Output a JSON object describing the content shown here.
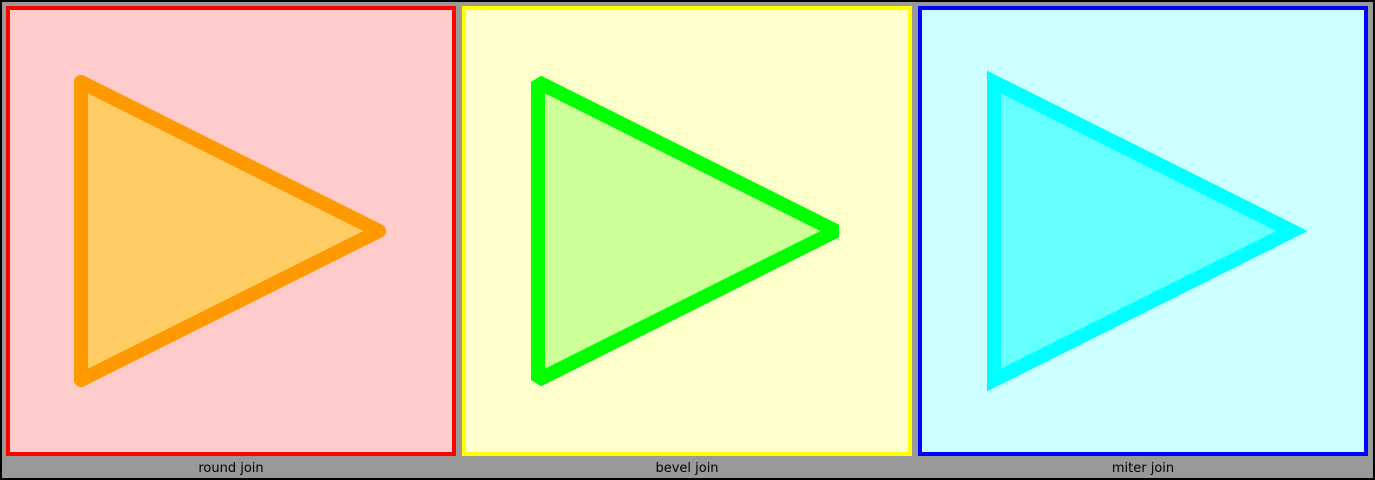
{
  "panels": [
    {
      "id": "round",
      "caption": "round join",
      "linejoin": "round",
      "border_color": "#ff0000",
      "background_color": "#ffcccc",
      "stroke_color": "#ff9900",
      "fill_color": "#ffcc66",
      "shape": "triangle-arrow-right"
    },
    {
      "id": "bevel",
      "caption": "bevel join",
      "linejoin": "bevel",
      "border_color": "#ffff00",
      "background_color": "#ffffcc",
      "stroke_color": "#00ff00",
      "fill_color": "#ccff99",
      "shape": "triangle-arrow-right"
    },
    {
      "id": "miter",
      "caption": "miter join",
      "linejoin": "miter",
      "border_color": "#0000ff",
      "background_color": "#ccffff",
      "stroke_color": "#00ffff",
      "fill_color": "#66ffff",
      "shape": "triangle-arrow-right"
    }
  ],
  "frame_background": "#999999"
}
